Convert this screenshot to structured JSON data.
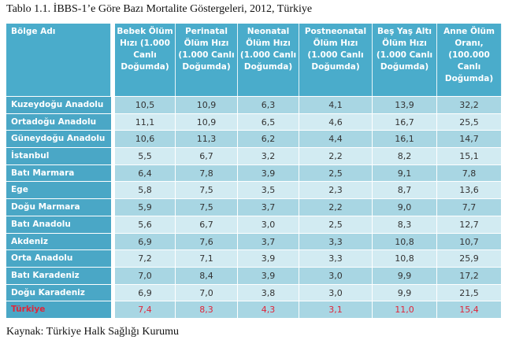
{
  "title": "Tablo 1.1. İBBS-1’e Göre Bazı Mortalite Göstergeleri, 2012, Türkiye",
  "columns": [
    "Bölge Adı",
    "Bebek Ölüm Hızı (1.000 Canlı Doğumda)",
    "Perinatal Ölüm Hızı (1.000 Canlı Doğumda)",
    "Neonatal Ölüm Hızı (1.000 Canlı Doğumda)",
    "Postneonatal Ölüm Hızı (1.000 Canlı Doğumda)",
    "Beş Yaş Altı Ölüm Hızı (1.000 Canlı Doğumda)",
    "Anne Ölüm Oranı, (100.000 Canlı Doğumda)"
  ],
  "rows": [
    [
      "Kuzeydoğu Anadolu",
      "10,5",
      "10,9",
      "6,3",
      "4,1",
      "13,9",
      "32,2"
    ],
    [
      "Ortadoğu Anadolu",
      "11,1",
      "10,9",
      "6,5",
      "4,6",
      "16,7",
      "25,5"
    ],
    [
      "Güneydoğu Anadolu",
      "10,6",
      "11,3",
      "6,2",
      "4,4",
      "16,1",
      "14,7"
    ],
    [
      "İstanbul",
      "5,5",
      "6,7",
      "3,2",
      "2,2",
      "8,2",
      "15,1"
    ],
    [
      "Batı Marmara",
      "6,4",
      "7,8",
      "3,9",
      "2,5",
      "9,1",
      "7,8"
    ],
    [
      "Ege",
      "5,8",
      "7,5",
      "3,5",
      "2,3",
      "8,7",
      "13,6"
    ],
    [
      "Doğu Marmara",
      "5,9",
      "7,5",
      "3,7",
      "2,2",
      "9,0",
      "7,7"
    ],
    [
      "Batı Anadolu",
      "5,6",
      "6,7",
      "3,0",
      "2,5",
      "8,3",
      "12,7"
    ],
    [
      "Akdeniz",
      "6,9",
      "7,6",
      "3,7",
      "3,3",
      "10,8",
      "10,7"
    ],
    [
      "Orta Anadolu",
      "7,2",
      "7,1",
      "3,9",
      "3,3",
      "10,8",
      "25,9"
    ],
    [
      "Batı Karadeniz",
      "7,0",
      "8,4",
      "3,9",
      "3,0",
      "9,9",
      "17,2"
    ],
    [
      "Doğu Karadeniz",
      "6,9",
      "7,0",
      "3,8",
      "3,0",
      "9,9",
      "21,5"
    ],
    [
      "Türkiye",
      "7,4",
      "8,3",
      "4,3",
      "3,1",
      "11,0",
      "15,4"
    ]
  ],
  "source": "Kaynak: Türkiye Halk Sağlığı Kurumu",
  "colors": {
    "header": "#4aaccb",
    "row_dark": "#a8d6e3",
    "row_light": "#d2ebf2",
    "total_text": "#e0263a"
  }
}
